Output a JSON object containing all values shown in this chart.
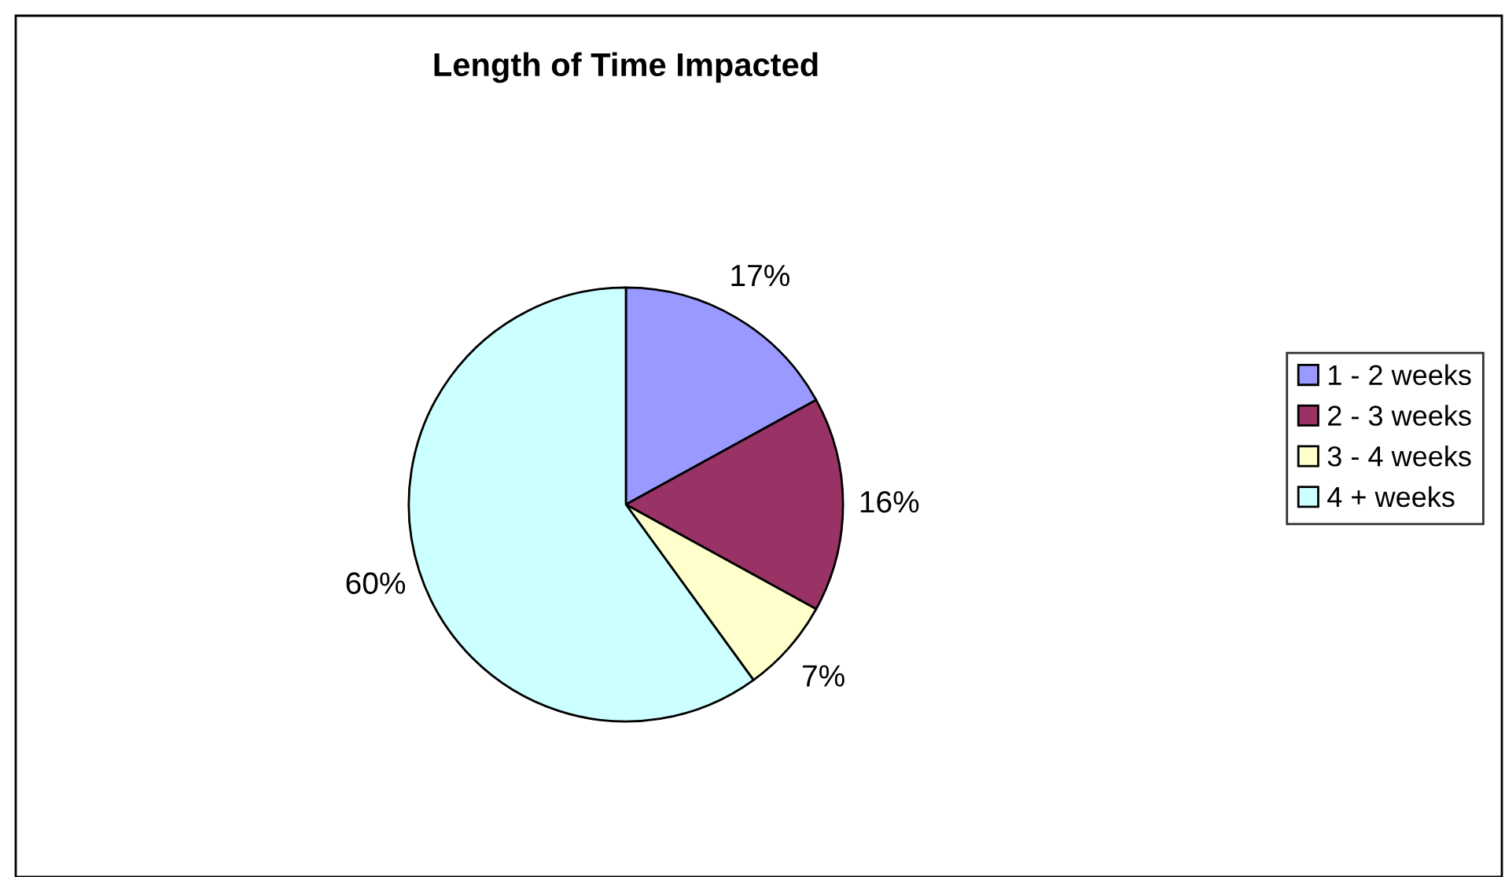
{
  "chart_data": {
    "type": "pie",
    "title": "Length of Time Impacted",
    "categories": [
      "1 - 2 weeks",
      "2 - 3 weeks",
      "3 - 4 weeks",
      "4 + weeks"
    ],
    "values": [
      17,
      16,
      7,
      60
    ],
    "value_labels": [
      "17%",
      "16%",
      "7%",
      "60%"
    ],
    "colors": [
      "#9999ff",
      "#993366",
      "#ffffcc",
      "#ccffff"
    ],
    "legend": "right"
  }
}
